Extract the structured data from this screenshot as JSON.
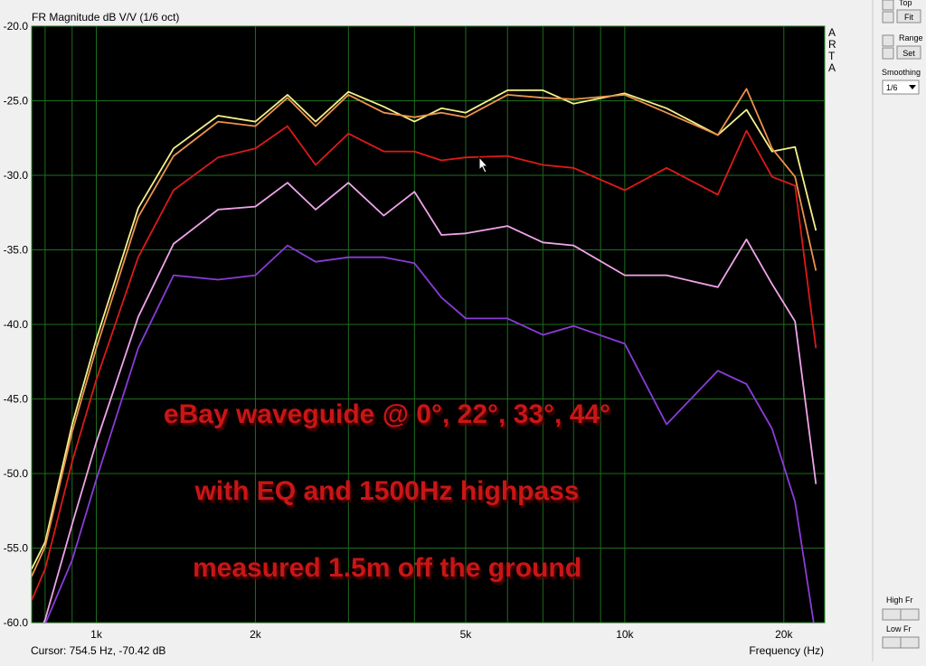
{
  "chart_data": {
    "type": "line",
    "title": "FR Magnitude dB V/V (1/6 oct)",
    "brand": "ARTA",
    "x_label": "Frequency (Hz)",
    "cursor_readout": "Cursor: 754.5 Hz, -70.42 dB",
    "annotations": [
      "eBay waveguide @ 0°, 22°, 33°, 44°",
      "with EQ and 1500Hz highpass",
      "measured 1.5m off the ground"
    ],
    "log_x": true,
    "grid": true,
    "xlim": [
      754.5,
      23900
    ],
    "ylim": [
      -60,
      -20
    ],
    "xticks": [
      {
        "value": 1000,
        "label": "1k"
      },
      {
        "value": 2000,
        "label": "2k"
      },
      {
        "value": 5000,
        "label": "5k"
      },
      {
        "value": 10000,
        "label": "10k"
      },
      {
        "value": 20000,
        "label": "20k"
      }
    ],
    "x_minor_grid": [
      800,
      900,
      3000,
      4000,
      6000,
      7000,
      8000,
      9000
    ],
    "yticks": [
      {
        "value": -20,
        "label": "-20.0"
      },
      {
        "value": -25,
        "label": "-25.0"
      },
      {
        "value": -30,
        "label": "-30.0"
      },
      {
        "value": -35,
        "label": "-35.0"
      },
      {
        "value": -40,
        "label": "-40.0"
      },
      {
        "value": -45,
        "label": "-45.0"
      },
      {
        "value": -50,
        "label": "-50.0"
      },
      {
        "value": -55,
        "label": "-55.0"
      },
      {
        "value": -60,
        "label": "-60.0"
      }
    ],
    "x": [
      754.5,
      800,
      900,
      1000,
      1200,
      1400,
      1700,
      2000,
      2300,
      2600,
      3000,
      3500,
      4000,
      4500,
      5000,
      6000,
      7000,
      8000,
      10000,
      12000,
      15000,
      17000,
      19000,
      21000,
      23000
    ],
    "series": [
      {
        "color": "#f4f08c",
        "values": [
          -56.4,
          -54.6,
          -46.7,
          -41.0,
          -32.2,
          -28.2,
          -26.0,
          -26.4,
          -24.6,
          -26.4,
          -24.4,
          -25.4,
          -26.4,
          -25.5,
          -25.8,
          -24.3,
          -24.3,
          -25.2,
          -24.5,
          -25.5,
          -27.3,
          -25.6,
          -28.4,
          -28.1,
          -33.7
        ]
      },
      {
        "color": "#ec924c",
        "values": [
          -56.9,
          -54.9,
          -47.2,
          -41.6,
          -32.8,
          -28.7,
          -26.4,
          -26.7,
          -24.8,
          -26.7,
          -24.6,
          -25.8,
          -26.1,
          -25.8,
          -26.1,
          -24.6,
          -24.8,
          -24.9,
          -24.6,
          -25.8,
          -27.3,
          -24.2,
          -28.2,
          -30.1,
          -36.4
        ]
      },
      {
        "color": "#dc1a1a",
        "values": [
          -58.5,
          -56.4,
          -49.2,
          -43.7,
          -35.5,
          -31.0,
          -28.8,
          -28.2,
          -26.7,
          -29.3,
          -27.2,
          -28.4,
          -28.4,
          -29.0,
          -28.8,
          -28.7,
          -29.3,
          -29.5,
          -31.0,
          -29.5,
          -31.3,
          -27.0,
          -30.1,
          -30.7,
          -41.6
        ]
      },
      {
        "color": "#f0a4ea",
        "values": [
          -62.0,
          -59.8,
          -53.4,
          -47.9,
          -39.5,
          -34.6,
          -32.3,
          -32.1,
          -30.5,
          -32.3,
          -30.5,
          -32.7,
          -31.1,
          -34.0,
          -33.9,
          -33.4,
          -34.5,
          -34.7,
          -36.7,
          -36.7,
          -37.5,
          -34.3,
          -37.3,
          -39.8,
          -50.7
        ]
      },
      {
        "color": "#8a3cd8",
        "values": [
          -64.0,
          -60.1,
          -55.8,
          -50.4,
          -41.6,
          -36.7,
          -37.0,
          -36.7,
          -34.7,
          -35.8,
          -35.5,
          -35.5,
          -35.9,
          -38.2,
          -39.6,
          -39.6,
          -40.7,
          -40.1,
          -41.3,
          -46.7,
          -43.1,
          -44.0,
          -47.0,
          -51.9,
          -61.0
        ]
      }
    ]
  },
  "panel": {
    "top": "Top",
    "fit": "Fit",
    "range": "Range",
    "set": "Set",
    "smoothing": "Smoothing",
    "smoothing_value": "1/6",
    "high_fr": "High Fr",
    "low_fr": "Low Fr"
  }
}
